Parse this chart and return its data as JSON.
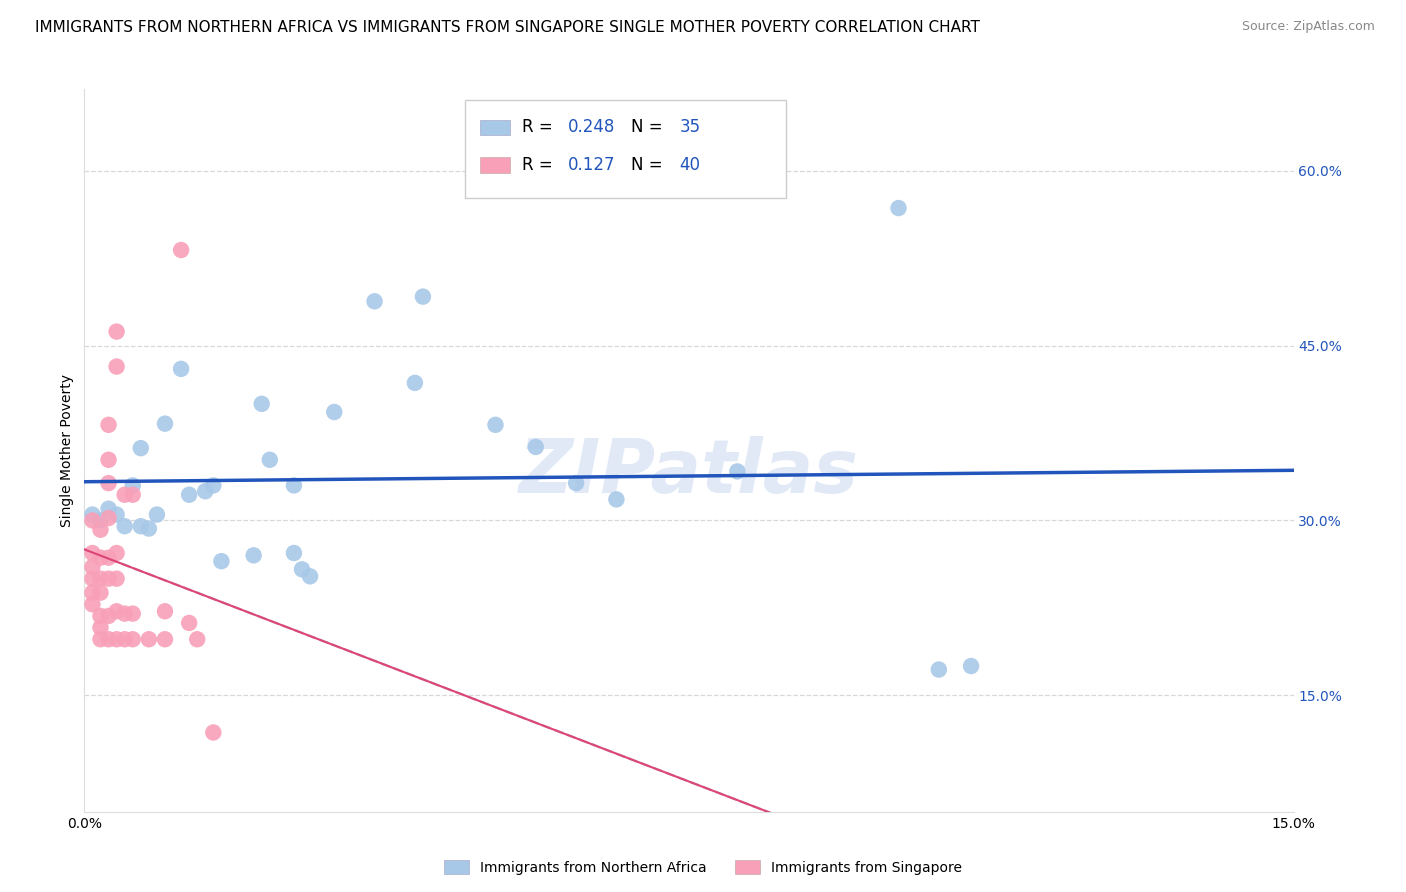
{
  "title": "IMMIGRANTS FROM NORTHERN AFRICA VS IMMIGRANTS FROM SINGAPORE SINGLE MOTHER POVERTY CORRELATION CHART",
  "source": "Source: ZipAtlas.com",
  "ylabel": "Single Mother Poverty",
  "xlim": [
    0.0,
    0.15
  ],
  "ylim": [
    0.05,
    0.67
  ],
  "yticks": [
    0.15,
    0.3,
    0.45,
    0.6
  ],
  "ytick_labels_right": [
    "15.0%",
    "30.0%",
    "45.0%",
    "60.0%"
  ],
  "xticks": [
    0.0,
    0.03,
    0.06,
    0.09,
    0.12,
    0.15
  ],
  "xtick_labels": [
    "0.0%",
    "",
    "",
    "",
    "",
    "15.0%"
  ],
  "legend_blue_r": "0.248",
  "legend_blue_n": "35",
  "legend_pink_r": "0.127",
  "legend_pink_n": "40",
  "legend_label_blue": "Immigrants from Northern Africa",
  "legend_label_pink": "Immigrants from Singapore",
  "blue_fill": "#a8c8e8",
  "blue_line": "#2255bb",
  "pink_fill": "#f8a0b8",
  "pink_line": "#dd4477",
  "gray_dash": "#ccbbbb",
  "watermark": "ZIPatlas",
  "scatter_blue": [
    [
      0.001,
      0.305
    ],
    [
      0.002,
      0.3
    ],
    [
      0.003,
      0.31
    ],
    [
      0.004,
      0.305
    ],
    [
      0.005,
      0.295
    ],
    [
      0.006,
      0.33
    ],
    [
      0.007,
      0.362
    ],
    [
      0.007,
      0.295
    ],
    [
      0.008,
      0.293
    ],
    [
      0.009,
      0.305
    ],
    [
      0.01,
      0.383
    ],
    [
      0.012,
      0.43
    ],
    [
      0.013,
      0.322
    ],
    [
      0.015,
      0.325
    ],
    [
      0.016,
      0.33
    ],
    [
      0.017,
      0.265
    ],
    [
      0.021,
      0.27
    ],
    [
      0.022,
      0.4
    ],
    [
      0.023,
      0.352
    ],
    [
      0.026,
      0.33
    ],
    [
      0.026,
      0.272
    ],
    [
      0.027,
      0.258
    ],
    [
      0.028,
      0.252
    ],
    [
      0.031,
      0.393
    ],
    [
      0.036,
      0.488
    ],
    [
      0.041,
      0.418
    ],
    [
      0.042,
      0.492
    ],
    [
      0.051,
      0.382
    ],
    [
      0.056,
      0.363
    ],
    [
      0.061,
      0.332
    ],
    [
      0.066,
      0.318
    ],
    [
      0.081,
      0.342
    ],
    [
      0.101,
      0.568
    ],
    [
      0.106,
      0.172
    ],
    [
      0.11,
      0.175
    ]
  ],
  "scatter_pink": [
    [
      0.001,
      0.3
    ],
    [
      0.001,
      0.272
    ],
    [
      0.001,
      0.26
    ],
    [
      0.001,
      0.25
    ],
    [
      0.001,
      0.238
    ],
    [
      0.001,
      0.228
    ],
    [
      0.002,
      0.292
    ],
    [
      0.002,
      0.268
    ],
    [
      0.002,
      0.25
    ],
    [
      0.002,
      0.238
    ],
    [
      0.002,
      0.218
    ],
    [
      0.002,
      0.208
    ],
    [
      0.002,
      0.198
    ],
    [
      0.003,
      0.382
    ],
    [
      0.003,
      0.352
    ],
    [
      0.003,
      0.332
    ],
    [
      0.003,
      0.302
    ],
    [
      0.003,
      0.268
    ],
    [
      0.003,
      0.25
    ],
    [
      0.003,
      0.218
    ],
    [
      0.003,
      0.198
    ],
    [
      0.004,
      0.462
    ],
    [
      0.004,
      0.432
    ],
    [
      0.004,
      0.272
    ],
    [
      0.004,
      0.25
    ],
    [
      0.004,
      0.222
    ],
    [
      0.004,
      0.198
    ],
    [
      0.005,
      0.322
    ],
    [
      0.005,
      0.22
    ],
    [
      0.005,
      0.198
    ],
    [
      0.006,
      0.322
    ],
    [
      0.006,
      0.22
    ],
    [
      0.006,
      0.198
    ],
    [
      0.008,
      0.198
    ],
    [
      0.01,
      0.222
    ],
    [
      0.01,
      0.198
    ],
    [
      0.012,
      0.532
    ],
    [
      0.013,
      0.212
    ],
    [
      0.014,
      0.198
    ],
    [
      0.016,
      0.118
    ]
  ],
  "title_fontsize": 11,
  "axis_label_fontsize": 10,
  "tick_fontsize": 10,
  "legend_fontsize": 12,
  "source_fontsize": 9
}
